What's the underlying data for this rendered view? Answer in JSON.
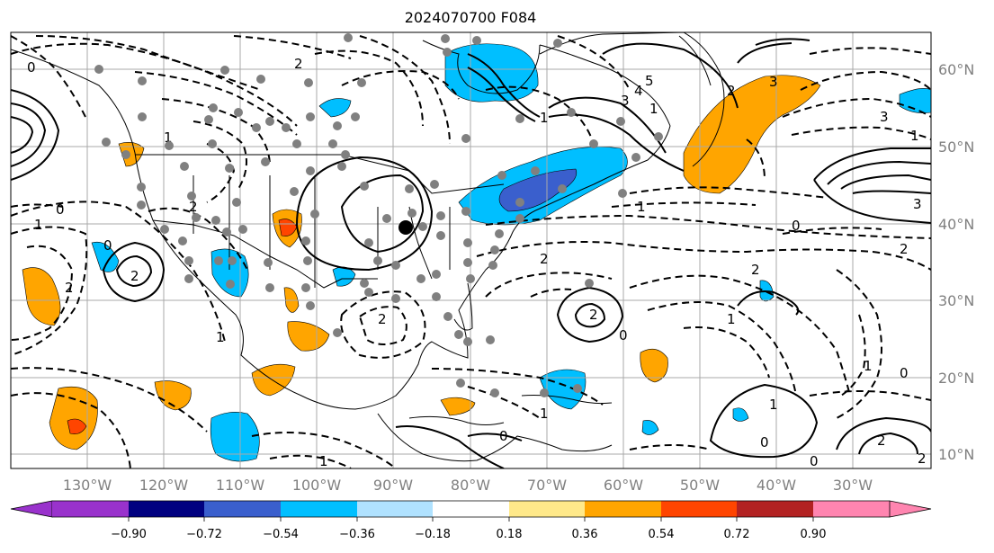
{
  "title": "2024070700 F084",
  "lon_labels": [
    "130°W",
    "120°W",
    "110°W",
    "100°W",
    "90°W",
    "80°W",
    "70°W",
    "60°W",
    "50°W",
    "40°W",
    "30°W"
  ],
  "lat_labels": [
    "60°N",
    "50°N",
    "40°N",
    "30°N",
    "20°N",
    "10°N"
  ],
  "colorbar": {
    "ticks": [
      "−0.90",
      "−0.72",
      "−0.54",
      "−0.36",
      "−0.18",
      "0.18",
      "0.36",
      "0.54",
      "0.72",
      "0.90"
    ],
    "colors": [
      "#9932cc",
      "#000080",
      "#3a5fcd",
      "#00bfff",
      "#b0e2ff",
      "#ffffff",
      "#ffe98a",
      "#ffa500",
      "#ff4500",
      "#b22222",
      "#ff85b0"
    ]
  },
  "contour_labels": [
    "0",
    "1",
    "2",
    "3",
    "4",
    "5",
    "1",
    "2",
    "3",
    "0",
    "1",
    "2",
    "0",
    "2",
    "1",
    "2",
    "2",
    "3",
    "0",
    "1",
    "2",
    "1",
    "0",
    "2",
    "1",
    "2",
    "1",
    "0",
    "1",
    "2",
    "0",
    "1",
    "0",
    "2",
    "1",
    "0",
    "1",
    "2",
    "3"
  ],
  "colors": {
    "positive_fill": "#ffa500",
    "strong_positive_fill": "#ff4500",
    "negative_fill": "#00bfff",
    "strong_negative_fill": "#3a5fcd",
    "station_dot": "#808080",
    "grid": "#a9a9a9"
  }
}
